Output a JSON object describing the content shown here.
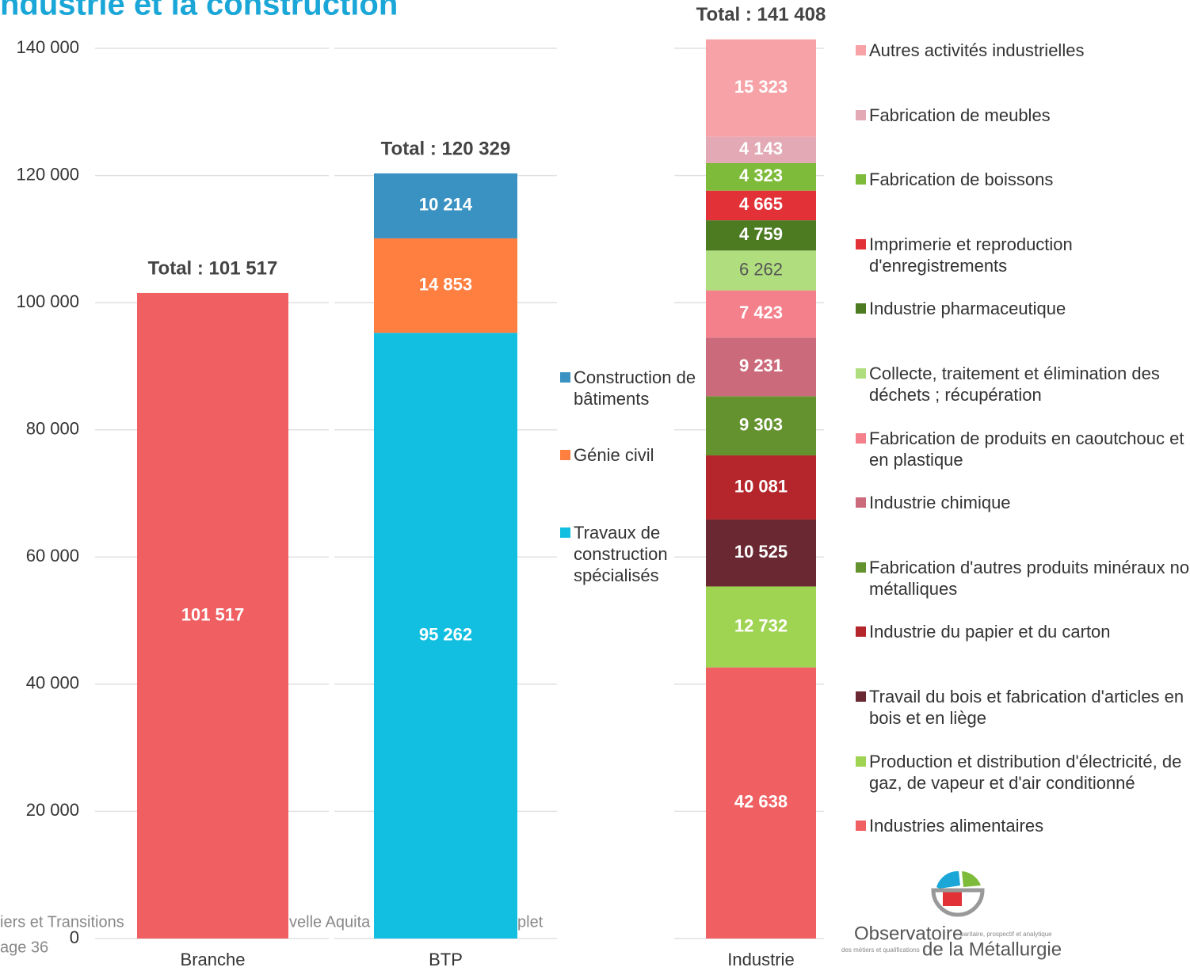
{
  "chart_data": {
    "type": "bar",
    "stacked": true,
    "title": "ndustrie et la construction",
    "categories": [
      "Branche",
      "BTP",
      "Industrie"
    ],
    "totals": [
      "Total : 101 517",
      "Total : 120 329",
      "Total : 141 408"
    ],
    "ylim": [
      0,
      140000
    ],
    "yticks": [
      0,
      {
        "value": 20000,
        "label": "20 000"
      },
      {
        "value": 40000,
        "label": "40 000"
      },
      {
        "value": 60000,
        "label": "60 000"
      },
      {
        "value": 80000,
        "label": "80 000"
      },
      {
        "value": 100000,
        "label": "100 000"
      },
      {
        "value": 120000,
        "label": "120 000"
      },
      {
        "value": 140000,
        "label": "140 000"
      }
    ],
    "grid": true,
    "series": [
      {
        "color": "#f05f62",
        "values": [
          101517,
          null,
          null
        ],
        "value_labels": [
          "101 517",
          null,
          null
        ]
      },
      {
        "name": "Travaux de construction spécialisés",
        "color": "#12bfe0",
        "values": [
          null,
          95262,
          null
        ],
        "value_labels": [
          null,
          "95 262",
          null
        ]
      },
      {
        "name": "Génie civil",
        "color": "#fe7f40",
        "values": [
          null,
          14853,
          null
        ],
        "value_labels": [
          null,
          "14 853",
          null
        ]
      },
      {
        "name": "Construction de bâtiments",
        "color": "#3a92c2",
        "values": [
          null,
          10214,
          null
        ],
        "value_labels": [
          null,
          "10 214",
          null
        ]
      },
      {
        "name": "Industries alimentaires",
        "color": "#f05f62",
        "values": [
          null,
          null,
          42638
        ],
        "value_labels": [
          null,
          null,
          "42 638"
        ]
      },
      {
        "name": "Production et distribution d'électricité, de gaz, de vapeur et d'air conditionné",
        "color": "#9fd352",
        "values": [
          null,
          null,
          12732
        ],
        "value_labels": [
          null,
          null,
          "12 732"
        ]
      },
      {
        "name": "Travail du bois et fabrication d'articles en bois et en liège",
        "color": "#6a2832",
        "values": [
          null,
          null,
          10525
        ],
        "value_labels": [
          null,
          null,
          "10 525"
        ]
      },
      {
        "name": "Industrie du papier et du carton",
        "color": "#b4262b",
        "values": [
          null,
          null,
          10081
        ],
        "value_labels": [
          null,
          null,
          "10 081"
        ]
      },
      {
        "name": "Fabrication d'autres produits minéraux non métalliques",
        "color": "#64922f",
        "values": [
          null,
          null,
          9303
        ],
        "value_labels": [
          null,
          null,
          "9 303"
        ]
      },
      {
        "name": "Industrie chimique",
        "color": "#cb6a7a",
        "values": [
          null,
          null,
          9231
        ],
        "value_labels": [
          null,
          null,
          "9 231"
        ]
      },
      {
        "name": "Fabrication de produits en caoutchouc et en plastique",
        "color": "#f3808a",
        "values": [
          null,
          null,
          7423
        ],
        "value_labels": [
          null,
          null,
          "7 423"
        ]
      },
      {
        "name": "Collecte, traitement et élimination des déchets ; récupération",
        "color": "#b0de7e",
        "label_color": "#555555",
        "values": [
          null,
          null,
          6262
        ],
        "value_labels": [
          null,
          null,
          "6 262"
        ]
      },
      {
        "name": "Industrie pharmaceutique",
        "color": "#4d7b22",
        "values": [
          null,
          null,
          4759
        ],
        "value_labels": [
          null,
          null,
          "4 759"
        ]
      },
      {
        "name": "Imprimerie et reproduction d'enregistrements",
        "color": "#e23238",
        "values": [
          null,
          null,
          4665
        ],
        "value_labels": [
          null,
          null,
          "4 665"
        ]
      },
      {
        "name": "Fabrication de boissons",
        "color": "#7fbb3a",
        "values": [
          null,
          null,
          4323
        ],
        "value_labels": [
          null,
          null,
          "4 323"
        ]
      },
      {
        "name": "Fabrication de meubles",
        "color": "#e3aab5",
        "values": [
          null,
          null,
          4143
        ],
        "value_labels": [
          null,
          null,
          "4 143"
        ]
      },
      {
        "name": "Autres activités industrielles",
        "color": "#f6a2a7",
        "values": [
          null,
          null,
          15323
        ],
        "value_labels": [
          null,
          null,
          "15 323"
        ]
      }
    ]
  },
  "footer": [
    "iers et Transitions",
    "velle Aquita",
    "plet",
    "age 36"
  ],
  "logo": {
    "name": "Observatoire",
    "tagline": "paritaire, prospectif et analytique",
    "sub": "des métiers et qualifications",
    "org": "de la Métallurgie"
  }
}
